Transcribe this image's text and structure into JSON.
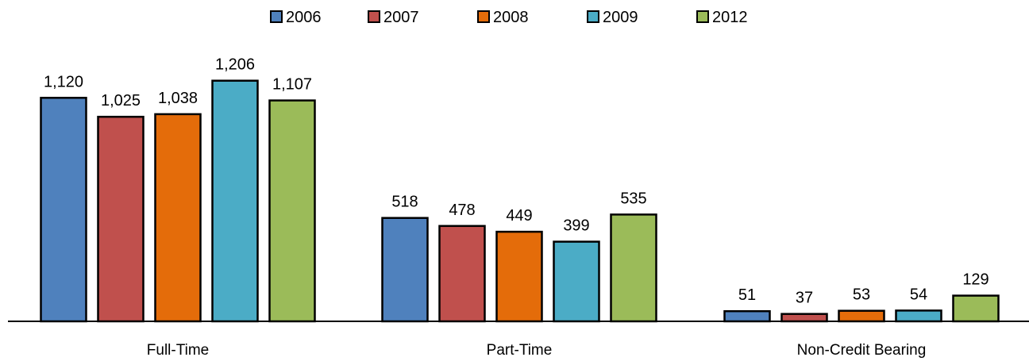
{
  "chart_data": {
    "type": "bar",
    "title": "",
    "xlabel": "",
    "ylabel": "",
    "categories": [
      "Full-Time",
      "Part-Time",
      "Non-Credit Bearing"
    ],
    "series": [
      {
        "name": "2006",
        "color": "#4f81bd",
        "values": [
          1120,
          518,
          51
        ]
      },
      {
        "name": "2007",
        "color": "#c0504d",
        "values": [
          1025,
          478,
          37
        ]
      },
      {
        "name": "2008",
        "color": "#e46c0a",
        "values": [
          1038,
          449,
          53
        ]
      },
      {
        "name": "2009",
        "color": "#4bacc6",
        "values": [
          1206,
          399,
          54
        ]
      },
      {
        "name": "2012",
        "color": "#9bbb59",
        "values": [
          1107,
          535,
          129
        ]
      }
    ],
    "value_labels": [
      [
        "1,120",
        "518",
        "51"
      ],
      [
        "1,025",
        "478",
        "37"
      ],
      [
        "1,038",
        "449",
        "53"
      ],
      [
        "1,206",
        "399",
        "54"
      ],
      [
        "1,107",
        "535",
        "129"
      ]
    ],
    "ylim": [
      0,
      1320
    ],
    "grid": false,
    "legend_position": "top-center",
    "bar_border_color": "#000000"
  }
}
